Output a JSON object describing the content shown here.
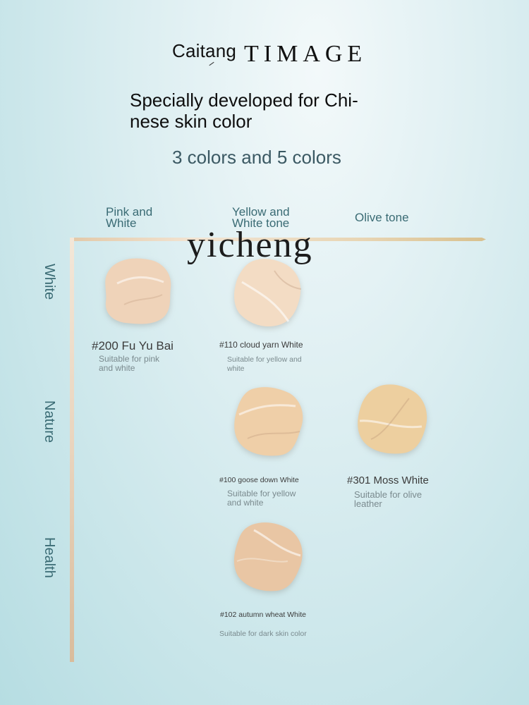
{
  "brand": {
    "name_cn": "Caitang",
    "name_en": "TIMAGE"
  },
  "headline": "Specially developed for Chi-nese skin color",
  "subheadline": "3 colors and 5 colors",
  "watermark": "yicheng",
  "columns": [
    {
      "label": "Pink and White"
    },
    {
      "label": "Yellow and White tone"
    },
    {
      "label": "Olive tone"
    }
  ],
  "rows": [
    {
      "label": "White"
    },
    {
      "label": "Nature"
    },
    {
      "label": "Health"
    }
  ],
  "shades": [
    {
      "name": "#200 Fu Yu Bai",
      "desc": "Suitable for pink and white",
      "color": "#efd3b9"
    },
    {
      "name": "#110 cloud yarn White",
      "desc": "Suitable for yellow and white",
      "color": "#f3dcc4"
    },
    {
      "name": "#100 goose down White",
      "desc": "Suitable for yellow and white",
      "color": "#efcfa8"
    },
    {
      "name": "#301 Moss White",
      "desc": "Suitable for olive leather",
      "color": "#edcf9f"
    },
    {
      "name": "#102 autumn wheat White",
      "desc": "Suitable for dark skin color",
      "color": "#e9c6a4"
    }
  ]
}
